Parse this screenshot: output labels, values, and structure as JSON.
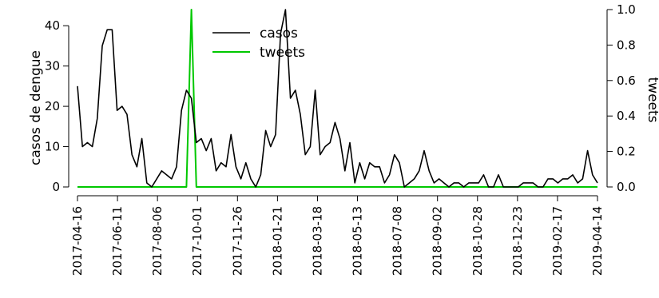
{
  "chart_data": {
    "type": "line",
    "x_tick_labels": [
      "2017-04-16",
      "2017-06-11",
      "2017-08-06",
      "2017-10-01",
      "2017-11-26",
      "2018-01-21",
      "2018-03-18",
      "2018-05-13",
      "2018-07-08",
      "2018-09-02",
      "2018-10-28",
      "2018-12-23",
      "2019-02-17",
      "2019-04-14"
    ],
    "ylabel_left": "casos de dengue",
    "ylabel_right": "tweets",
    "ylim_left": [
      0,
      44
    ],
    "ylim_right": [
      0,
      1
    ],
    "yticks_left": [
      0,
      10,
      20,
      30,
      40
    ],
    "yticks_right": [
      "0.0",
      "0.2",
      "0.4",
      "0.6",
      "0.8",
      "1.0"
    ],
    "legend_position": "top-center",
    "series": [
      {
        "name": "casos",
        "color": "#000000",
        "axis": "left",
        "values": [
          25,
          10,
          11,
          10,
          17,
          35,
          39,
          39,
          19,
          20,
          18,
          8,
          5,
          12,
          1,
          0,
          2,
          4,
          3,
          2,
          5,
          19,
          24,
          22,
          11,
          12,
          9,
          12,
          4,
          6,
          5,
          13,
          5,
          2,
          6,
          2,
          0,
          3,
          14,
          10,
          13,
          38,
          44,
          22,
          24,
          18,
          8,
          10,
          24,
          8,
          10,
          11,
          16,
          12,
          4,
          11,
          1,
          6,
          2,
          6,
          5,
          5,
          1,
          3,
          8,
          6,
          0,
          1,
          2,
          4,
          9,
          4,
          1,
          2,
          1,
          0,
          1,
          1,
          0,
          1,
          1,
          1,
          3,
          0,
          0,
          3,
          0,
          0,
          0,
          0,
          1,
          1,
          1,
          0,
          0,
          2,
          2,
          1,
          2,
          2,
          3,
          1,
          2,
          9,
          3,
          1
        ]
      },
      {
        "name": "tweets",
        "color": "#00c800",
        "axis": "right",
        "values": [
          0,
          0,
          0,
          0,
          0,
          0,
          0,
          0,
          0,
          0,
          0,
          0,
          0,
          0,
          0,
          0,
          0,
          0,
          0,
          0,
          0,
          0,
          0,
          1,
          0,
          0,
          0,
          0,
          0,
          0,
          0,
          0,
          0,
          0,
          0,
          0,
          0,
          0,
          0,
          0,
          0,
          0,
          0,
          0,
          0,
          0,
          0,
          0,
          0,
          0,
          0,
          0,
          0,
          0,
          0,
          0,
          0,
          0,
          0,
          0,
          0,
          0,
          0,
          0,
          0,
          0,
          0,
          0,
          0,
          0,
          0,
          0,
          0,
          0,
          0,
          0,
          0,
          0,
          0,
          0,
          0,
          0,
          0,
          0,
          0,
          0,
          0,
          0,
          0,
          0,
          0,
          0,
          0,
          0,
          0,
          0,
          0,
          0,
          0,
          0,
          0,
          0,
          0,
          0,
          0,
          0
        ]
      }
    ]
  }
}
